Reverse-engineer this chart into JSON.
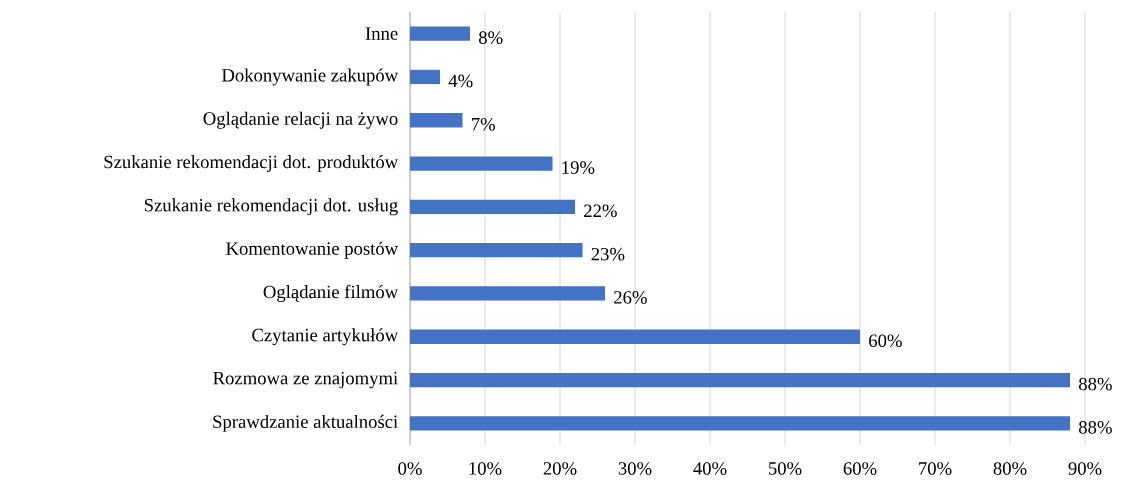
{
  "chart_data": {
    "type": "bar",
    "orientation": "horizontal",
    "categories": [
      "Inne",
      "Dokonywanie zakupów",
      "Oglądanie relacji na żywo",
      "Szukanie rekomendacji dot. produktów",
      "Szukanie rekomendacji dot. usług",
      "Komentowanie postów",
      "Oglądanie filmów",
      "Czytanie artykułów",
      "Rozmowa ze znajomymi",
      "Sprawdzanie aktualności"
    ],
    "values": [
      8,
      4,
      7,
      19,
      22,
      23,
      26,
      60,
      88,
      88
    ],
    "value_labels": [
      "8%",
      "4%",
      "7%",
      "19%",
      "22%",
      "23%",
      "26%",
      "60%",
      "88%",
      "88%"
    ],
    "color": "#4472c4",
    "xlim": [
      0,
      90
    ],
    "xticks": [
      {
        "value": 0,
        "label": "0%"
      },
      {
        "value": 10,
        "label": "10%"
      },
      {
        "value": 20,
        "label": "20%"
      },
      {
        "value": 30,
        "label": "30%"
      },
      {
        "value": 40,
        "label": "40%"
      },
      {
        "value": 50,
        "label": "50%"
      },
      {
        "value": 60,
        "label": "60%"
      },
      {
        "value": 70,
        "label": "70%"
      },
      {
        "value": 80,
        "label": "80%"
      },
      {
        "value": 90,
        "label": "90%"
      }
    ],
    "grid": "x"
  }
}
